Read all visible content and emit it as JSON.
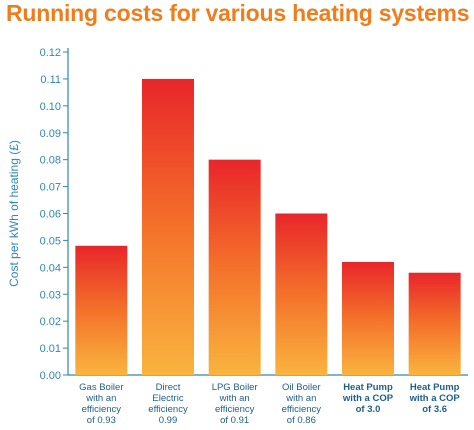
{
  "chart_data": {
    "type": "bar",
    "title": "Running costs for various heating systems",
    "ylabel": "Cost per kWh of heating (£)",
    "xlabel": "",
    "ylim": [
      0,
      0.12
    ],
    "yticks": [
      "0.00",
      "0.01",
      "0.02",
      "0.03",
      "0.04",
      "0.05",
      "0.06",
      "0.07",
      "0.08",
      "0.09",
      "0.10",
      "0.11",
      "0.12"
    ],
    "grid": false,
    "categories": [
      {
        "lines": [
          "Gas Boiler",
          "with an",
          "efficiency",
          "of 0.93"
        ],
        "bold": false
      },
      {
        "lines": [
          "Direct",
          "Electric",
          "efficiency",
          "0.99"
        ],
        "bold": false
      },
      {
        "lines": [
          "LPG Boiler",
          "with an",
          "efficiency",
          "of 0.91"
        ],
        "bold": false
      },
      {
        "lines": [
          "Oil Boiler",
          "with an",
          "efficiency",
          "of 0.86"
        ],
        "bold": false
      },
      {
        "lines": [
          "Heat Pump",
          "with a COP",
          "of 3.0"
        ],
        "bold": true
      },
      {
        "lines": [
          "Heat Pump",
          "with a COP",
          "of 3.6"
        ],
        "bold": true
      }
    ],
    "values": [
      0.048,
      0.11,
      0.08,
      0.06,
      0.042,
      0.038
    ],
    "colors": {
      "bar_top": "#e8262a",
      "bar_mid": "#f4712a",
      "bar_bottom": "#f9b43f",
      "axis": "#2e87b7",
      "title": "#f07d1a"
    }
  }
}
